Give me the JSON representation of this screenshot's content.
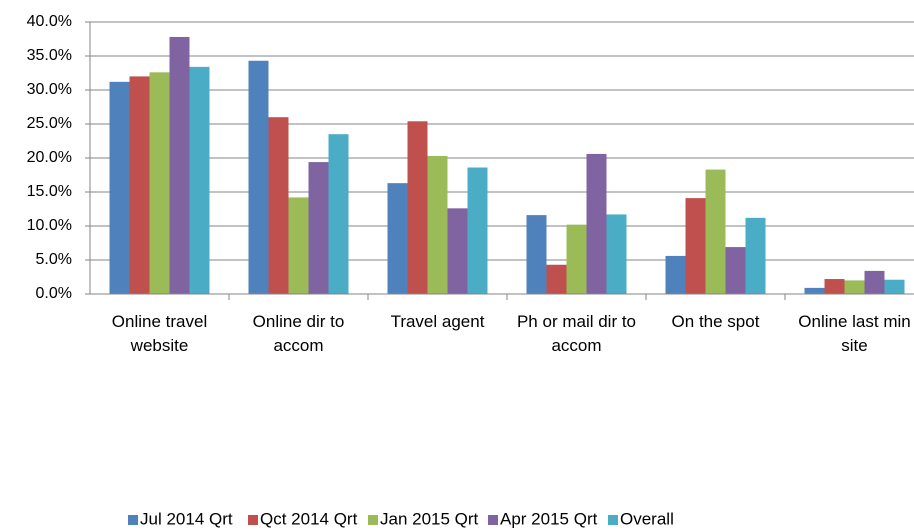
{
  "chart_data": {
    "type": "bar",
    "categories": [
      "Online travel website",
      "Online dir to accom",
      "Travel agent",
      "Ph or mail dir to accom",
      "On the spot",
      "Online last min site"
    ],
    "series": [
      {
        "name": "Jul 2014 Qrt",
        "color": "#4f81bd",
        "values": [
          31.2,
          34.3,
          16.3,
          11.6,
          5.6,
          0.9
        ]
      },
      {
        "name": "Qct 2014 Qrt",
        "color": "#c0504d",
        "values": [
          32.0,
          26.0,
          25.4,
          4.3,
          14.1,
          2.2
        ]
      },
      {
        "name": "Jan 2015 Qrt",
        "color": "#9bbb59",
        "values": [
          32.6,
          14.2,
          20.3,
          10.2,
          18.3,
          2.0
        ]
      },
      {
        "name": "Apr 2015 Qrt",
        "color": "#8064a2",
        "values": [
          37.8,
          19.4,
          12.6,
          20.6,
          6.9,
          3.4
        ]
      },
      {
        "name": "Overall",
        "color": "#4bacc6",
        "values": [
          33.4,
          23.5,
          18.6,
          11.7,
          11.2,
          2.1
        ]
      }
    ],
    "ylim": [
      0,
      40
    ],
    "yticks": [
      {
        "value": 0,
        "label": "0.0%"
      },
      {
        "value": 5,
        "label": "5.0%"
      },
      {
        "value": 10,
        "label": "10.0%"
      },
      {
        "value": 15,
        "label": "15.0%"
      },
      {
        "value": 20,
        "label": "20.0%"
      },
      {
        "value": 25,
        "label": "25.0%"
      },
      {
        "value": 30,
        "label": "30.0%"
      },
      {
        "value": 35,
        "label": "35.0%"
      },
      {
        "value": 40,
        "label": "40.0%"
      }
    ],
    "grid": true,
    "legend": "bottom"
  }
}
